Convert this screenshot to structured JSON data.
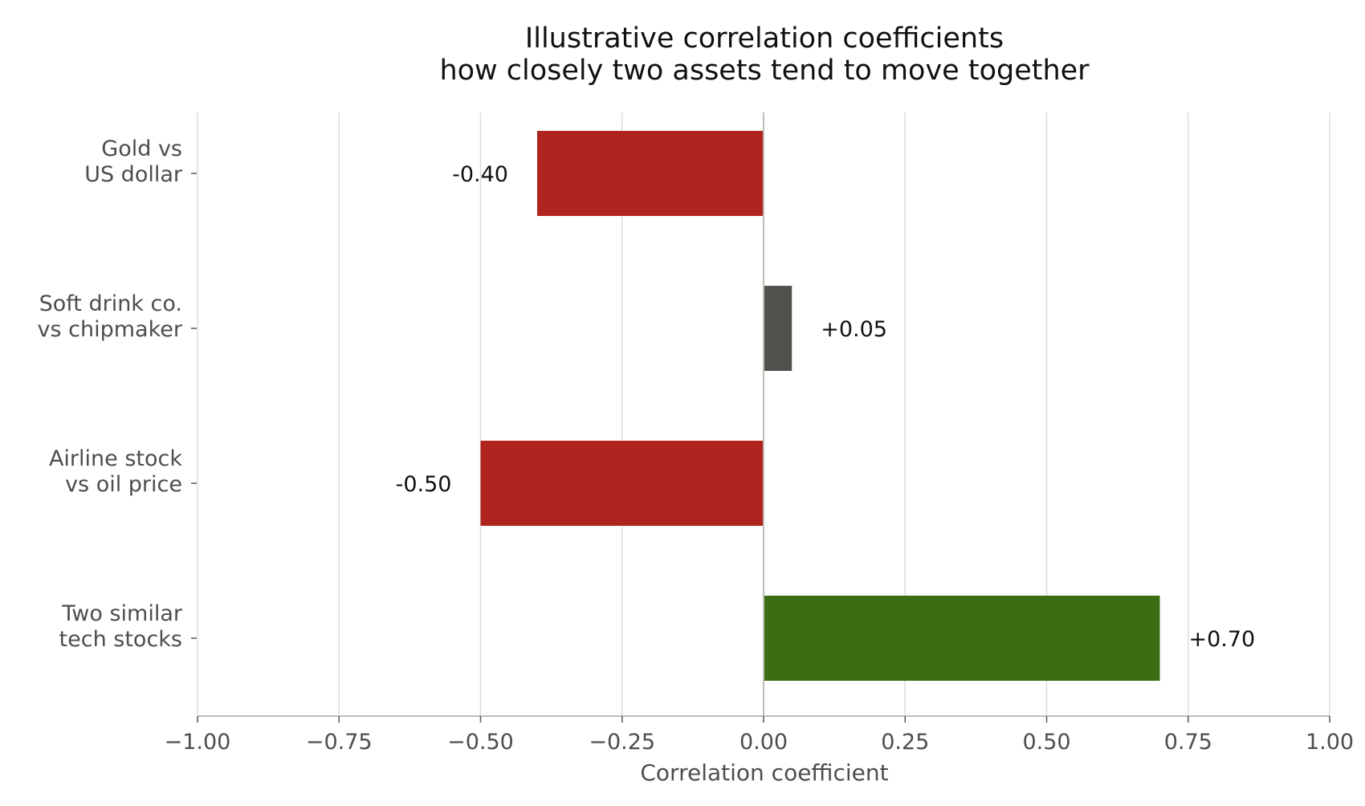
{
  "chart_data": {
    "type": "bar",
    "orientation": "horizontal",
    "title": "Illustrative correlation coefficients",
    "subtitle": "how closely two assets tend to move together",
    "xlabel": "Correlation coefficient",
    "ylabel": "",
    "xlim": [
      -1.0,
      1.0
    ],
    "x_ticks": [
      -1.0,
      -0.75,
      -0.5,
      -0.25,
      0.0,
      0.25,
      0.5,
      0.75,
      1.0
    ],
    "x_tick_labels": [
      "−1.00",
      "−0.75",
      "−0.50",
      "−0.25",
      "0.00",
      "0.25",
      "0.50",
      "0.75",
      "1.00"
    ],
    "grid": true,
    "categories": [
      [
        "Gold vs",
        "US dollar"
      ],
      [
        "Soft drink co.",
        "vs chipmaker"
      ],
      [
        "Airline stock",
        "vs oil price"
      ],
      [
        "Two similar",
        "tech stocks"
      ]
    ],
    "values": [
      -0.4,
      0.05,
      -0.5,
      0.7
    ],
    "data_labels": [
      "-0.40",
      "+0.05",
      "-0.50",
      "+0.70"
    ],
    "colors": {
      "negative": "#b0241f",
      "near_zero": "#52514d",
      "positive": "#3b6e13",
      "grid": "#dddddd",
      "axis": "#c0bdb5",
      "zero_line": "#c0bdb5"
    }
  }
}
